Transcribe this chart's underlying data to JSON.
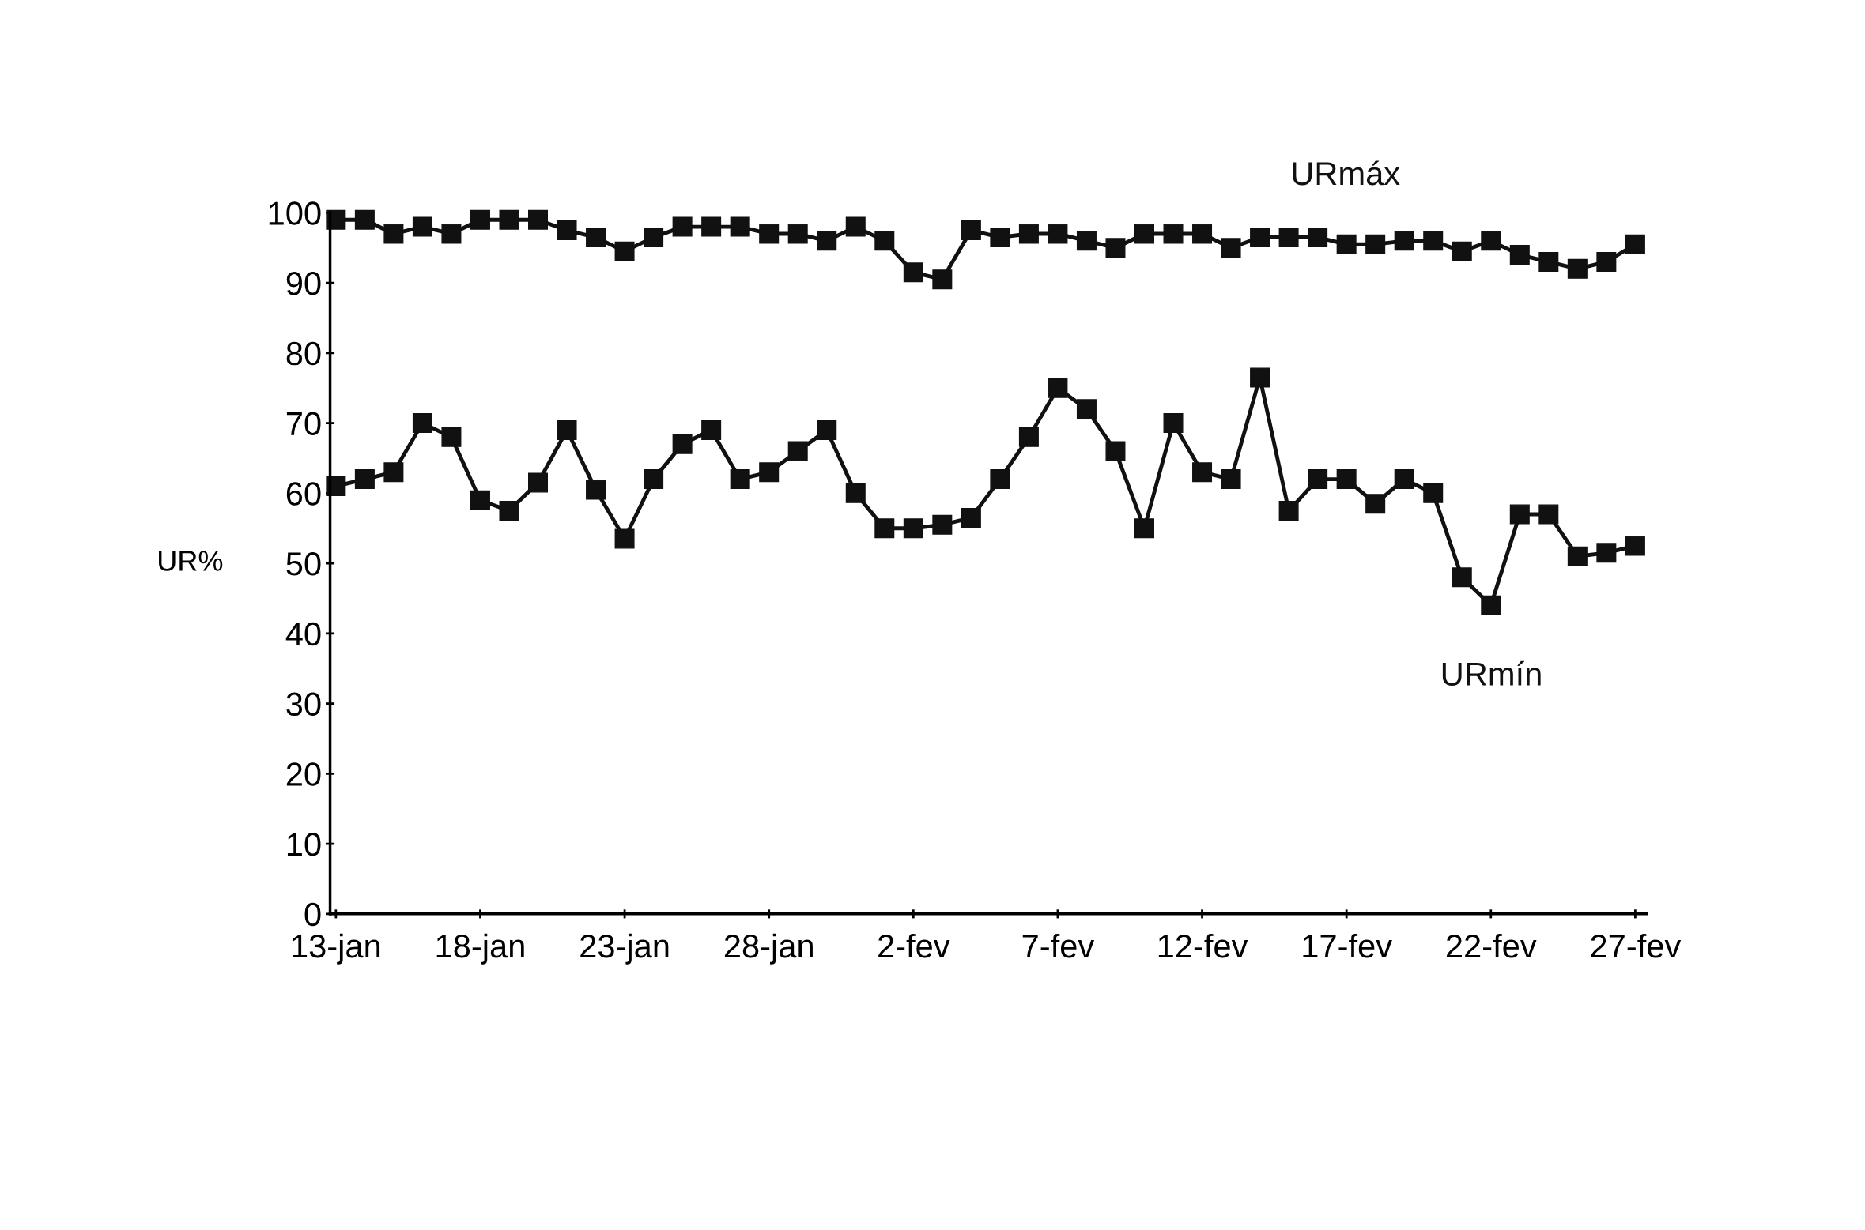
{
  "chart_data": {
    "type": "line",
    "ylabel": "UR%",
    "categories": [
      "13-jan",
      null,
      null,
      null,
      null,
      "18-jan",
      null,
      null,
      null,
      null,
      "23-jan",
      null,
      null,
      null,
      null,
      "28-jan",
      null,
      null,
      null,
      null,
      "2-fev",
      null,
      null,
      null,
      null,
      "7-fev",
      null,
      null,
      null,
      null,
      "12-fev",
      null,
      null,
      null,
      null,
      "17-fev",
      null,
      null,
      null,
      null,
      "22-fev",
      null,
      null,
      null,
      null,
      "27-fev"
    ],
    "series": [
      {
        "name": "URmáx",
        "color": "#111111",
        "values": [
          99,
          99,
          97,
          98,
          97,
          99,
          99,
          99,
          97.5,
          96.5,
          94.5,
          96.5,
          98,
          98,
          98,
          97,
          97,
          96,
          98,
          96,
          91.5,
          90.5,
          97.5,
          96.5,
          97,
          97,
          96,
          95,
          97,
          97,
          97,
          95,
          96.5,
          96.5,
          96.5,
          95.5,
          95.5,
          96,
          96,
          94.5,
          96,
          94,
          93,
          92,
          93,
          95.5
        ]
      },
      {
        "name": "URmín",
        "color": "#111111",
        "values": [
          61,
          62,
          63,
          70,
          68,
          59,
          57.5,
          61.5,
          69,
          60.5,
          53.5,
          62,
          67,
          69,
          62,
          63,
          66,
          69,
          60,
          55,
          55,
          55.5,
          56.5,
          62,
          68,
          75,
          72,
          66,
          55,
          70,
          63,
          62,
          76.5,
          57.5,
          62,
          62,
          58.5,
          62,
          60,
          48,
          44,
          57,
          57,
          51,
          51.5,
          52.5
        ]
      }
    ],
    "ylim": [
      0,
      100
    ],
    "yticks": [
      0,
      10,
      20,
      30,
      40,
      50,
      60,
      70,
      80,
      90,
      100
    ],
    "grid": false,
    "legend": false,
    "marker": "square",
    "line_style": "solid"
  }
}
